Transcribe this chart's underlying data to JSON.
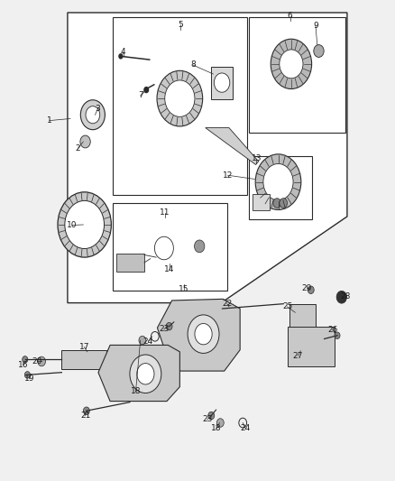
{
  "bg_color": "#f0f0f0",
  "line_color": "#2a2a2a",
  "text_color": "#1a1a1a",
  "figsize": [
    4.38,
    5.33
  ],
  "dpi": 100
}
